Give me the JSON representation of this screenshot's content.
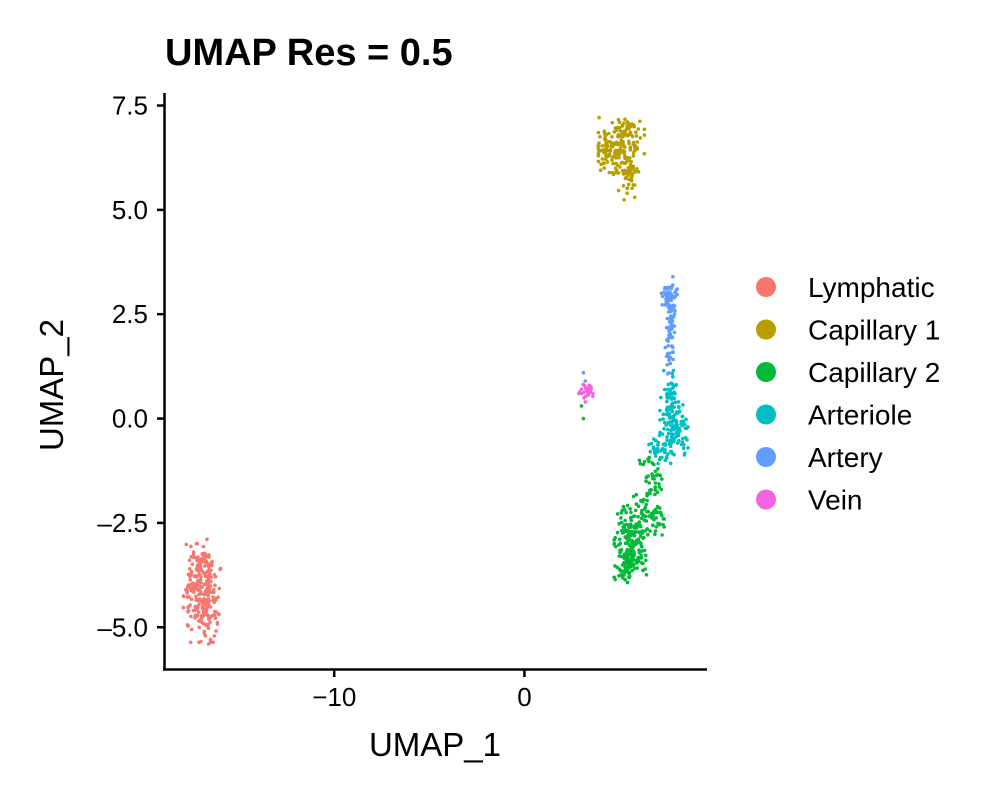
{
  "chart_data": {
    "type": "scatter",
    "title": "UMAP Res = 0.5",
    "xlabel": "UMAP_1",
    "ylabel": "UMAP_2",
    "xlim": [
      -18.9,
      9.6
    ],
    "ylim": [
      -6.0,
      7.8
    ],
    "xticks": [
      {
        "v": -10,
        "label": "−10"
      },
      {
        "v": 0,
        "label": "0"
      }
    ],
    "yticks": [
      {
        "v": 7.5,
        "label": "7.5"
      },
      {
        "v": 5.0,
        "label": "5.0"
      },
      {
        "v": 2.5,
        "label": "2.5"
      },
      {
        "v": 0.0,
        "label": "0.0"
      },
      {
        "v": -2.5,
        "label": "–2.5"
      },
      {
        "v": -5.0,
        "label": "–5.0"
      }
    ],
    "legend_position": "right",
    "series": [
      {
        "name": "Lymphatic",
        "color": "#F8766D",
        "n": 260,
        "points": [
          [
            -17.2,
            -3.0
          ],
          [
            -16.7,
            -3.3
          ],
          [
            -17.6,
            -3.6
          ],
          [
            -16.5,
            -3.9
          ],
          [
            -17.8,
            -4.1
          ],
          [
            -16.3,
            -4.3
          ],
          [
            -17.4,
            -4.6
          ],
          [
            -16.6,
            -4.8
          ],
          [
            -17.1,
            -5.0
          ],
          [
            -16.6,
            -5.4
          ]
        ],
        "blobs": [
          {
            "cx": -16.95,
            "cy": -4.15,
            "sx": 0.45,
            "sy": 0.55,
            "n": 130
          },
          {
            "cx": -16.9,
            "cy": -3.55,
            "sx": 0.35,
            "sy": 0.3,
            "n": 45
          },
          {
            "cx": -16.85,
            "cy": -4.75,
            "sx": 0.35,
            "sy": 0.3,
            "n": 45
          },
          {
            "cx": -17.4,
            "cy": -4.2,
            "sx": 0.25,
            "sy": 0.4,
            "n": 30
          }
        ]
      },
      {
        "name": "Capillary 1",
        "color": "#B79F00",
        "n": 230,
        "points": [
          [
            5.0,
            7.1
          ],
          [
            5.6,
            7.0
          ],
          [
            4.3,
            6.6
          ],
          [
            3.9,
            6.3
          ],
          [
            4.2,
            6.0
          ],
          [
            5.9,
            6.5
          ],
          [
            5.8,
            5.9
          ],
          [
            5.4,
            5.4
          ],
          [
            5.8,
            5.3
          ]
        ],
        "blobs": [
          {
            "cx": 5.1,
            "cy": 6.55,
            "sx": 0.55,
            "sy": 0.3,
            "n": 110
          },
          {
            "cx": 4.3,
            "cy": 6.4,
            "sx": 0.3,
            "sy": 0.25,
            "n": 40
          },
          {
            "cx": 5.5,
            "cy": 5.9,
            "sx": 0.25,
            "sy": 0.3,
            "n": 45
          },
          {
            "cx": 5.3,
            "cy": 6.95,
            "sx": 0.35,
            "sy": 0.1,
            "n": 25
          }
        ]
      },
      {
        "name": "Capillary 2",
        "color": "#00BA38",
        "n": 300,
        "points": [
          [
            3.0,
            0.3
          ],
          [
            3.1,
            0.0
          ],
          [
            6.8,
            -1.1
          ],
          [
            6.4,
            -1.5
          ],
          [
            7.2,
            -1.7
          ],
          [
            6.0,
            -2.1
          ],
          [
            7.3,
            -2.4
          ],
          [
            5.2,
            -2.6
          ],
          [
            6.0,
            -3.4
          ],
          [
            5.5,
            -3.8
          ]
        ],
        "blobs": [
          {
            "cx": 5.6,
            "cy": -3.15,
            "sx": 0.4,
            "sy": 0.35,
            "n": 140
          },
          {
            "cx": 5.5,
            "cy": -2.6,
            "sx": 0.3,
            "sy": 0.25,
            "n": 45
          },
          {
            "cx": 6.3,
            "cy": -2.2,
            "sx": 0.35,
            "sy": 0.3,
            "n": 40
          },
          {
            "cx": 7.0,
            "cy": -2.3,
            "sx": 0.2,
            "sy": 0.3,
            "n": 25
          },
          {
            "cx": 6.7,
            "cy": -1.3,
            "sx": 0.3,
            "sy": 0.25,
            "n": 25
          },
          {
            "cx": 5.4,
            "cy": -3.6,
            "sx": 0.2,
            "sy": 0.15,
            "n": 20
          }
        ]
      },
      {
        "name": "Arteriole",
        "color": "#00BFC4",
        "n": 200,
        "points": [
          [
            7.8,
            1.0
          ],
          [
            8.1,
            0.4
          ],
          [
            7.3,
            0.1
          ],
          [
            8.6,
            -0.2
          ],
          [
            7.1,
            -0.4
          ],
          [
            8.6,
            -0.7
          ],
          [
            6.9,
            -0.9
          ],
          [
            7.4,
            -1.0
          ]
        ],
        "blobs": [
          {
            "cx": 7.9,
            "cy": -0.2,
            "sx": 0.35,
            "sy": 0.32,
            "n": 110
          },
          {
            "cx": 7.7,
            "cy": 0.6,
            "sx": 0.2,
            "sy": 0.25,
            "n": 40
          },
          {
            "cx": 7.2,
            "cy": -0.75,
            "sx": 0.3,
            "sy": 0.15,
            "n": 40
          }
        ]
      },
      {
        "name": "Artery",
        "color": "#619CFF",
        "n": 120,
        "points": [
          [
            7.8,
            3.4
          ],
          [
            7.8,
            3.2
          ],
          [
            7.2,
            3.0
          ],
          [
            7.5,
            2.9
          ],
          [
            7.9,
            2.7
          ],
          [
            7.7,
            2.3
          ],
          [
            7.6,
            2.0
          ],
          [
            7.8,
            1.7
          ],
          [
            7.6,
            1.4
          ],
          [
            7.4,
            1.7
          ],
          [
            3.1,
            1.1
          ],
          [
            3.2,
            0.9
          ]
        ],
        "blobs": [
          {
            "cx": 7.55,
            "cy": 2.95,
            "sx": 0.22,
            "sy": 0.15,
            "n": 45
          },
          {
            "cx": 7.7,
            "cy": 2.3,
            "sx": 0.1,
            "sy": 0.35,
            "n": 40
          },
          {
            "cx": 7.6,
            "cy": 1.6,
            "sx": 0.1,
            "sy": 0.25,
            "n": 20
          }
        ]
      },
      {
        "name": "Vein",
        "color": "#F564E3",
        "n": 35,
        "points": [
          [
            3.0,
            0.6
          ],
          [
            3.4,
            0.8
          ],
          [
            3.6,
            0.6
          ],
          [
            3.2,
            0.4
          ],
          [
            3.5,
            0.7
          ]
        ],
        "blobs": [
          {
            "cx": 3.3,
            "cy": 0.65,
            "sx": 0.2,
            "sy": 0.1,
            "n": 30
          }
        ]
      }
    ]
  }
}
